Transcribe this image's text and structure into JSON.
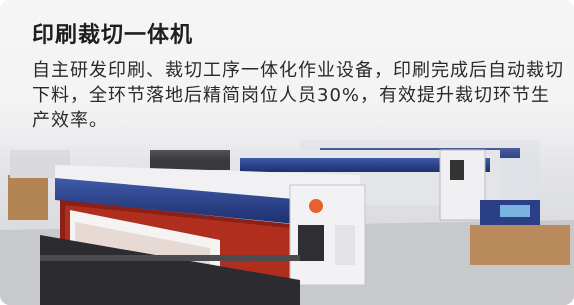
{
  "card": {
    "title": "印刷裁切一体机",
    "description": "自主研发印刷、裁切工序一体化作业设备，印刷完成后自动裁切下料，全环节落地后精简岗位人员30%，有效提升裁切环节生产效率。"
  }
}
